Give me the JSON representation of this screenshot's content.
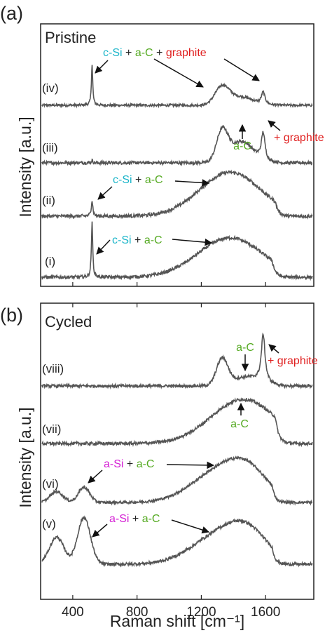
{
  "chart_data": [
    {
      "type": "line",
      "panel_label": "(a)",
      "title": "Pristine",
      "ylabel": "Intensity [a.u.]",
      "xlim": [
        200,
        1900
      ],
      "series": [
        {
          "name": "(iv)",
          "peaks": [
            {
              "x": 520,
              "h": 1.0,
              "w": 5
            },
            {
              "x": 1330,
              "h": 0.45,
              "w": 45
            },
            {
              "x": 1450,
              "h": 0.2,
              "w": 70
            },
            {
              "x": 1585,
              "h": 0.3,
              "w": 14
            }
          ],
          "cutoff": 1680
        },
        {
          "name": "(iii)",
          "peaks": [
            {
              "x": 520,
              "h": 0.05,
              "w": 5
            },
            {
              "x": 1330,
              "h": 0.6,
              "w": 35
            },
            {
              "x": 1450,
              "h": 0.42,
              "w": 70
            },
            {
              "x": 1585,
              "h": 0.55,
              "w": 14
            }
          ],
          "cutoff": 1680
        },
        {
          "name": "(ii)",
          "peaks": [
            {
              "x": 520,
              "h": 0.28,
              "w": 6
            },
            {
              "x": 1380,
              "h": 0.78,
              "w": 190
            }
          ],
          "cutoff": 1660
        },
        {
          "name": "(i)",
          "peaks": [
            {
              "x": 520,
              "h": 1.0,
              "w": 5
            },
            {
              "x": 1380,
              "h": 0.72,
              "w": 200
            }
          ],
          "cutoff": 1640
        }
      ]
    },
    {
      "type": "line",
      "panel_label": "(b)",
      "title": "Cycled",
      "ylabel": "Intensity [a.u.]",
      "xlabel": "Raman shift [cm⁻¹]",
      "xlim": [
        200,
        1900
      ],
      "xticks": [
        400,
        800,
        1200,
        1600
      ],
      "series": [
        {
          "name": "(viii)",
          "peaks": [
            {
              "x": 1330,
              "h": 0.55,
              "w": 35
            },
            {
              "x": 1480,
              "h": 0.18,
              "w": 90
            },
            {
              "x": 1585,
              "h": 1.0,
              "w": 14
            }
          ],
          "cutoff": 1680
        },
        {
          "name": "(vii)",
          "peaks": [
            {
              "x": 1460,
              "h": 0.85,
              "w": 200
            }
          ],
          "cutoff": 1660
        },
        {
          "name": "(vi)",
          "peaks": [
            {
              "x": 300,
              "h": 0.25,
              "w": 40
            },
            {
              "x": 470,
              "h": 0.35,
              "w": 35
            },
            {
              "x": 1330,
              "h": 0.75,
              "w": 180
            },
            {
              "x": 1500,
              "h": 0.45,
              "w": 120
            }
          ],
          "cutoff": 1640
        },
        {
          "name": "(v)",
          "peaks": [
            {
              "x": 300,
              "h": 0.55,
              "w": 45
            },
            {
              "x": 470,
              "h": 0.95,
              "w": 40
            },
            {
              "x": 1330,
              "h": 0.62,
              "w": 180
            },
            {
              "x": 1500,
              "h": 0.42,
              "w": 120
            }
          ],
          "cutoff": 1640
        }
      ]
    }
  ],
  "annotations": {
    "c_si": "c-Si",
    "a_si": "a-Si",
    "a_c": "a-C",
    "graphite": "graphite",
    "plus_graphite": "+ graphite",
    "plus": "+"
  },
  "colors": {
    "line": "#555555",
    "c_si": "#1bb5c9",
    "a_si": "#d41ed4",
    "a_c": "#55aa22",
    "graphite": "#e02020",
    "frame": "#222222"
  }
}
